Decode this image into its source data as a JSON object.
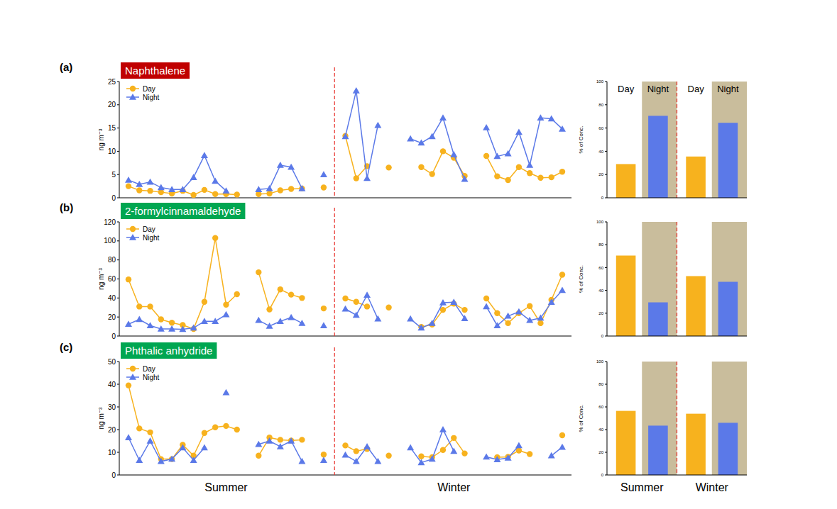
{
  "periods": [
    {
      "label": "Summer",
      "first": 0,
      "last": 18
    },
    {
      "label": "Winter",
      "first": 20,
      "last": 40
    }
  ],
  "chart_data": [
    {
      "type": "line",
      "panel_label": "(a)",
      "title": "Naphthalene",
      "y_label": "ng m⁻³",
      "categories": [
        null,
        null,
        null,
        null,
        null,
        null,
        null,
        null,
        null,
        null,
        null,
        null,
        null,
        null,
        null,
        null,
        null,
        null,
        null,
        null,
        null,
        null,
        null,
        null,
        null,
        null,
        null,
        null,
        null,
        null,
        null,
        null,
        null,
        null,
        null,
        null,
        null,
        null,
        null,
        null,
        null
      ],
      "ylim": [
        0,
        25
      ],
      "yticks": [
        0,
        5,
        10,
        15,
        20,
        25
      ],
      "legend": "upper left",
      "tick_labels": "y",
      "series": [
        {
          "name": "Day",
          "color": "#f7b21e",
          "marker": "circle",
          "values": [
            2.5,
            1.6,
            1.5,
            1.2,
            0.9,
            1.5,
            0.6,
            1.7,
            0.8,
            0.8,
            0.7,
            null,
            0.8,
            0.9,
            1.6,
            1.9,
            2.0,
            null,
            2.2,
            null,
            13.3,
            4.2,
            6.8,
            null,
            6.5,
            null,
            null,
            6.6,
            5.1,
            10.0,
            8.6,
            4.7,
            null,
            9.0,
            4.6,
            3.8,
            6.6,
            5.3,
            4.3,
            4.4,
            5.6
          ]
        },
        {
          "name": "Night",
          "color": "#5b79e8",
          "marker": "triangle",
          "values": [
            3.8,
            2.9,
            3.4,
            2.2,
            1.8,
            1.8,
            4.4,
            9.1,
            3.6,
            1.5,
            null,
            null,
            1.8,
            2.0,
            7.0,
            6.6,
            2.0,
            null,
            5.0,
            null,
            13.2,
            23.0,
            4.2,
            15.6,
            null,
            null,
            12.7,
            11.8,
            13.2,
            17.2,
            9.3,
            4.0,
            null,
            15.1,
            8.9,
            9.5,
            14.1,
            7.0,
            17.2,
            17.0,
            14.8
          ]
        }
      ]
    },
    {
      "type": "bar",
      "y_label": "% of Conc.",
      "categories": [
        "Summer",
        "Winter"
      ],
      "ylim": [
        0,
        100
      ],
      "yticks": [
        0,
        20,
        40,
        60,
        80,
        100
      ],
      "legend": "top",
      "tick_labels": "y",
      "series": [
        {
          "name": "Day",
          "color": "#f7b21e",
          "values": [
            29,
            35.5
          ]
        },
        {
          "name": "Night",
          "color": "#5b79e8",
          "values": [
            70.5,
            64.5
          ]
        }
      ]
    },
    {
      "type": "line",
      "panel_label": "(b)",
      "title": "2-formylcinnamaldehyde",
      "y_label": "ng m⁻³",
      "categories": [
        null,
        null,
        null,
        null,
        null,
        null,
        null,
        null,
        null,
        null,
        null,
        null,
        null,
        null,
        null,
        null,
        null,
        null,
        null,
        null,
        null,
        null,
        null,
        null,
        null,
        null,
        null,
        null,
        null,
        null,
        null,
        null,
        null,
        null,
        null,
        null,
        null,
        null,
        null,
        null,
        null
      ],
      "ylim": [
        0,
        120
      ],
      "yticks": [
        0,
        20,
        40,
        60,
        80,
        100,
        120
      ],
      "legend": "upper left",
      "tick_labels": "y",
      "series": [
        {
          "name": "Day",
          "color": "#f7b21e",
          "marker": "circle",
          "values": [
            59.5,
            31,
            31,
            17.5,
            14,
            11.5,
            7.5,
            36,
            103,
            33,
            44,
            null,
            67,
            28,
            49,
            43.5,
            40,
            null,
            29,
            null,
            39.5,
            36,
            31,
            null,
            30,
            null,
            null,
            9.5,
            12,
            27.5,
            34,
            27.5,
            null,
            39.5,
            24,
            13.5,
            24,
            31.5,
            13.5,
            38,
            64.5
          ]
        },
        {
          "name": "Night",
          "color": "#5b79e8",
          "marker": "triangle",
          "values": [
            12.5,
            17.5,
            11,
            7.5,
            7.5,
            7,
            8.5,
            15.5,
            15.5,
            22.5,
            null,
            null,
            16.5,
            10.5,
            15.5,
            19.5,
            13.5,
            null,
            11,
            null,
            28.5,
            22,
            43,
            18,
            null,
            null,
            18,
            8.5,
            13.5,
            35,
            35.5,
            18.5,
            null,
            31,
            11,
            21,
            25.5,
            16.5,
            19,
            35.5,
            48
          ]
        }
      ]
    },
    {
      "type": "bar",
      "y_label": "% of Conc.",
      "categories": [
        "Summer",
        "Winter"
      ],
      "ylim": [
        0,
        100
      ],
      "yticks": [
        0,
        20,
        40,
        60,
        80,
        100
      ],
      "tick_labels": "y",
      "series": [
        {
          "name": "Day",
          "color": "#f7b21e",
          "values": [
            70.5,
            52.5
          ]
        },
        {
          "name": "Night",
          "color": "#5b79e8",
          "values": [
            29.5,
            47.5
          ]
        }
      ]
    },
    {
      "type": "line",
      "panel_label": "(c)",
      "title": "Phthalic anhydride",
      "y_label": "ng m⁻³",
      "categories": [
        null,
        null,
        null,
        null,
        null,
        null,
        null,
        null,
        null,
        null,
        null,
        null,
        null,
        null,
        null,
        null,
        null,
        null,
        null,
        null,
        null,
        null,
        null,
        null,
        null,
        null,
        null,
        null,
        null,
        null,
        null,
        null,
        null,
        null,
        null,
        null,
        null,
        null,
        null,
        null,
        null
      ],
      "ylim": [
        0,
        50
      ],
      "yticks": [
        0,
        10,
        20,
        30,
        40,
        50
      ],
      "legend": "upper left",
      "tick_labels": "y",
      "series": [
        {
          "name": "Day",
          "color": "#f7b21e",
          "marker": "circle",
          "values": [
            39.5,
            20.5,
            18.8,
            7,
            7,
            13.3,
            8.5,
            18.5,
            21,
            21.6,
            20,
            null,
            8.5,
            16.5,
            15.5,
            15.2,
            15.5,
            null,
            9,
            null,
            13,
            10.5,
            11.5,
            null,
            8.5,
            null,
            null,
            8.2,
            7.8,
            11,
            16.3,
            9.5,
            null,
            null,
            7.8,
            8,
            10.8,
            9.2,
            null,
            null,
            17.5
          ]
        },
        {
          "name": "Night",
          "color": "#5b79e8",
          "marker": "triangle",
          "values": [
            16.5,
            6.5,
            15,
            6,
            7,
            12,
            6.5,
            12,
            null,
            36.3,
            null,
            null,
            13.5,
            15,
            12.5,
            15,
            6,
            null,
            6.5,
            null,
            8.8,
            6,
            12.5,
            6,
            null,
            null,
            12,
            5.5,
            7,
            20,
            10.5,
            null,
            null,
            8,
            6.8,
            7.5,
            13,
            null,
            null,
            8.5,
            12.3
          ]
        }
      ]
    },
    {
      "type": "bar",
      "y_label": "% of Conc.",
      "categories": [
        "Summer",
        "Winter"
      ],
      "ylim": [
        0,
        100
      ],
      "yticks": [
        0,
        20,
        40,
        60,
        80,
        100
      ],
      "series": [
        {
          "name": "Day",
          "color": "#f7b21e",
          "values": [
            56.5,
            54
          ]
        },
        {
          "name": "Night",
          "color": "#5b79e8",
          "values": [
            43.5,
            46
          ]
        }
      ]
    }
  ]
}
